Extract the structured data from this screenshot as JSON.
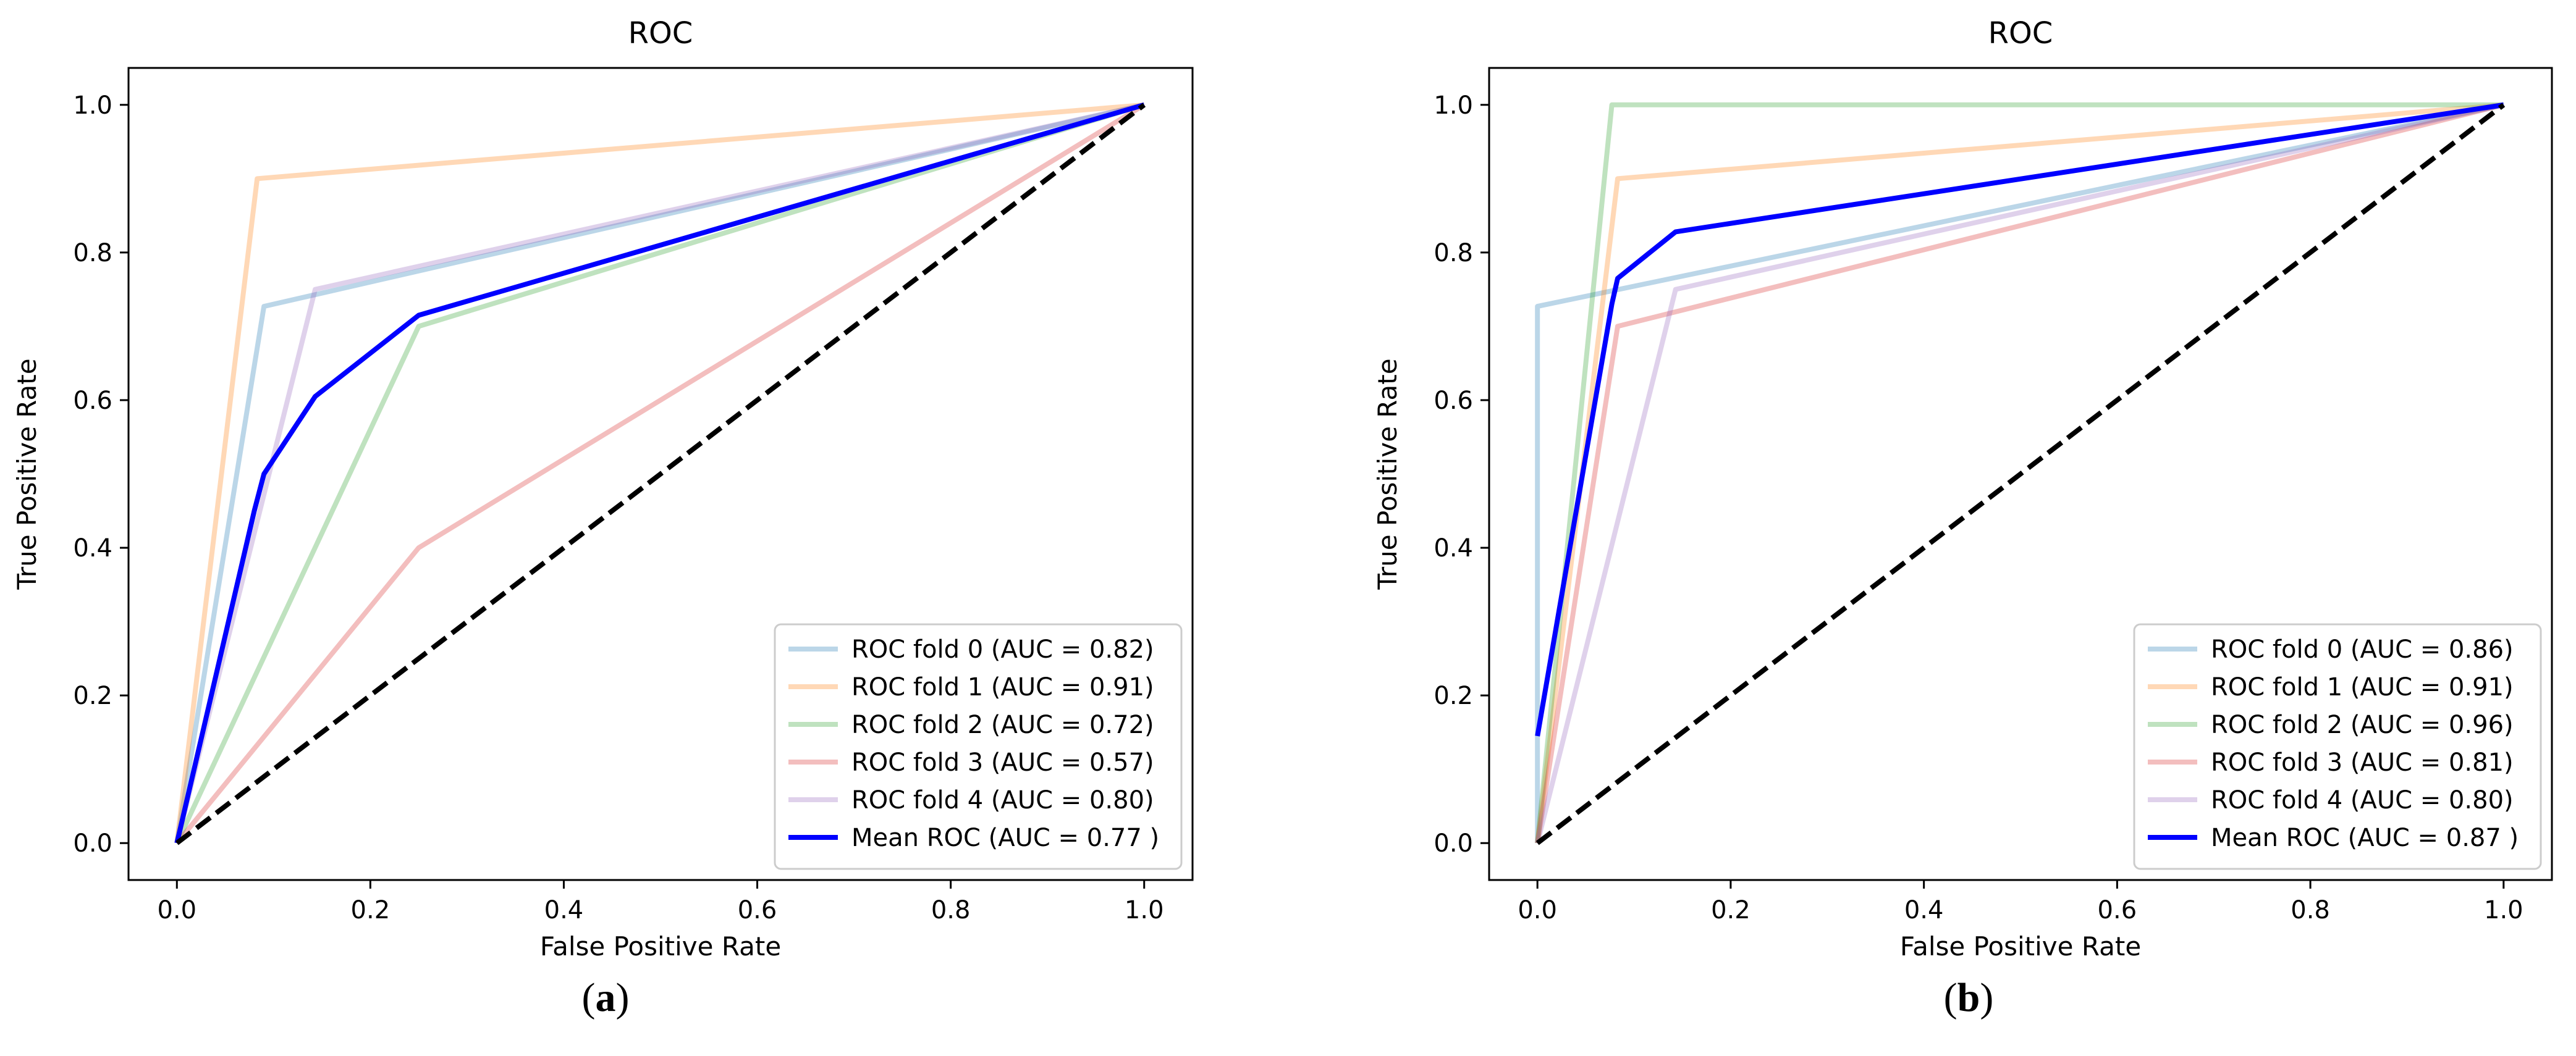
{
  "chart_data": [
    {
      "type": "line",
      "panel_label": "a",
      "title": "ROC",
      "xlabel": "False Positive Rate",
      "ylabel": "True Positive Rate",
      "xlim": [
        -0.05,
        1.05
      ],
      "ylim": [
        -0.05,
        1.05
      ],
      "xticks": [
        "0.0",
        "0.2",
        "0.4",
        "0.6",
        "0.8",
        "1.0"
      ],
      "yticks": [
        "0.0",
        "0.2",
        "0.4",
        "0.6",
        "0.8",
        "1.0"
      ],
      "legend_position": "lower-right",
      "series": [
        {
          "name": "ROC fold 0 (AUC = 0.82)",
          "color": "#1f77b4",
          "alpha": 0.3,
          "x": [
            0,
            0.09,
            1
          ],
          "y": [
            0,
            0.727,
            1
          ]
        },
        {
          "name": "ROC fold 1 (AUC = 0.91)",
          "color": "#ff7f0e",
          "alpha": 0.3,
          "x": [
            0,
            0.083,
            1
          ],
          "y": [
            0,
            0.9,
            1
          ]
        },
        {
          "name": "ROC fold 2 (AUC = 0.72)",
          "color": "#2ca02c",
          "alpha": 0.3,
          "x": [
            0,
            0.25,
            1
          ],
          "y": [
            0,
            0.7,
            1
          ]
        },
        {
          "name": "ROC fold 3 (AUC = 0.57)",
          "color": "#d62728",
          "alpha": 0.3,
          "x": [
            0,
            0.25,
            1
          ],
          "y": [
            0,
            0.4,
            1
          ]
        },
        {
          "name": "ROC fold 4 (AUC = 0.80)",
          "color": "#9467bd",
          "alpha": 0.3,
          "x": [
            0,
            0.143,
            1
          ],
          "y": [
            0,
            0.75,
            1
          ]
        },
        {
          "name": "Mean ROC (AUC = 0.77 )",
          "color": "#0000ff",
          "alpha": 1.0,
          "width": 2,
          "x": [
            0,
            0.08,
            0.09,
            0.143,
            0.25,
            1
          ],
          "y": [
            0,
            0.45,
            0.5,
            0.605,
            0.715,
            1
          ]
        },
        {
          "name": "chance",
          "color": "#000000",
          "alpha": 1.0,
          "dashed": true,
          "legend": false,
          "x": [
            0,
            1
          ],
          "y": [
            0,
            1
          ]
        }
      ]
    },
    {
      "type": "line",
      "panel_label": "b",
      "title": "ROC",
      "xlabel": "False Positive Rate",
      "ylabel": "True Positive Rate",
      "xlim": [
        -0.05,
        1.05
      ],
      "ylim": [
        -0.05,
        1.05
      ],
      "xticks": [
        "0.0",
        "0.2",
        "0.4",
        "0.6",
        "0.8",
        "1.0"
      ],
      "yticks": [
        "0.0",
        "0.2",
        "0.4",
        "0.6",
        "0.8",
        "1.0"
      ],
      "legend_position": "lower-right",
      "series": [
        {
          "name": "ROC fold 0 (AUC = 0.86)",
          "color": "#1f77b4",
          "alpha": 0.3,
          "x": [
            0,
            0,
            1
          ],
          "y": [
            0,
            0.727,
            1
          ]
        },
        {
          "name": "ROC fold 1 (AUC = 0.91)",
          "color": "#ff7f0e",
          "alpha": 0.3,
          "x": [
            0,
            0.083,
            1
          ],
          "y": [
            0,
            0.9,
            1
          ]
        },
        {
          "name": "ROC fold 2 (AUC = 0.96)",
          "color": "#2ca02c",
          "alpha": 0.3,
          "x": [
            0,
            0.077,
            1
          ],
          "y": [
            0,
            1.0,
            1
          ]
        },
        {
          "name": "ROC fold 3 (AUC = 0.81)",
          "color": "#d62728",
          "alpha": 0.3,
          "x": [
            0,
            0.083,
            1
          ],
          "y": [
            0,
            0.7,
            1
          ]
        },
        {
          "name": "ROC fold 4 (AUC = 0.80)",
          "color": "#9467bd",
          "alpha": 0.3,
          "x": [
            0,
            0.143,
            1
          ],
          "y": [
            0,
            0.75,
            1
          ]
        },
        {
          "name": "Mean ROC (AUC = 0.87 )",
          "color": "#0000ff",
          "alpha": 1.0,
          "width": 2,
          "x": [
            0,
            0.077,
            0.083,
            0.143,
            1
          ],
          "y": [
            0.145,
            0.73,
            0.765,
            0.828,
            1
          ]
        },
        {
          "name": "chance",
          "color": "#000000",
          "alpha": 1.0,
          "dashed": true,
          "legend": false,
          "x": [
            0,
            1
          ],
          "y": [
            0,
            1
          ]
        }
      ]
    }
  ]
}
